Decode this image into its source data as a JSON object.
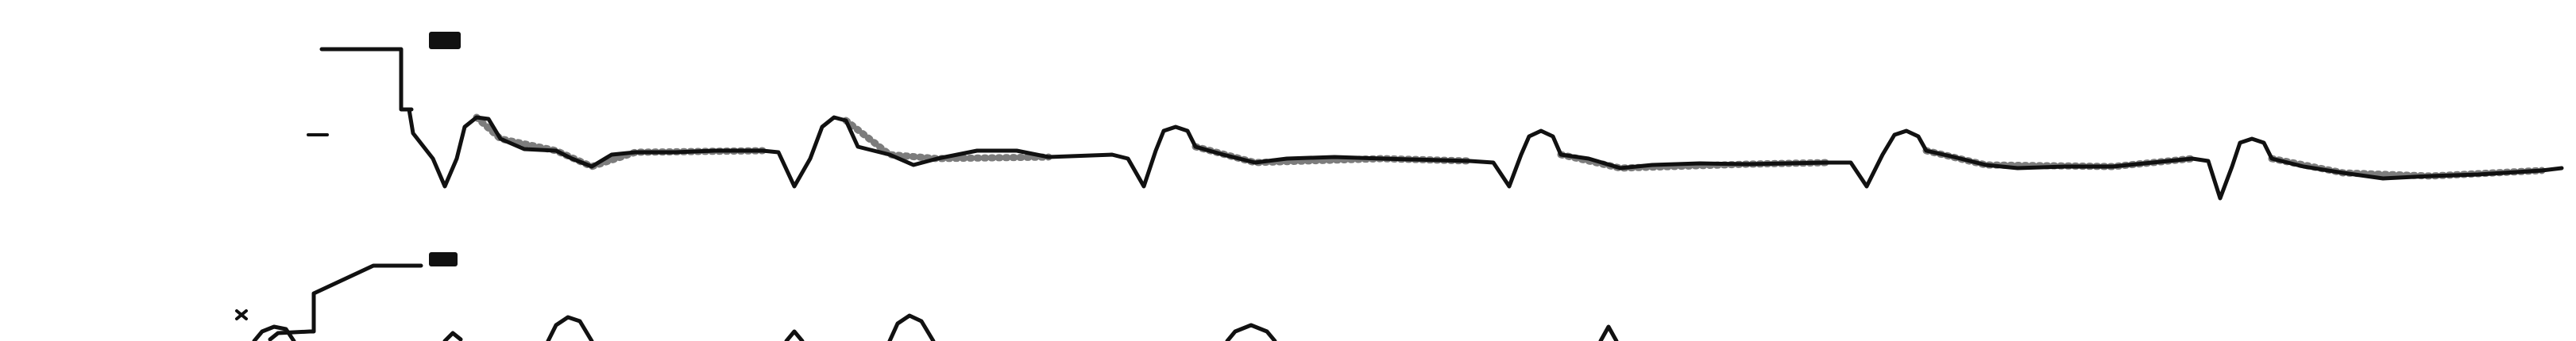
{
  "figure": {
    "background": "#ffffff",
    "ink": "#111111"
  },
  "leads": [
    {
      "kind": "upper-trace",
      "beats": 6
    },
    {
      "kind": "lower-trace",
      "beats": 4
    }
  ]
}
